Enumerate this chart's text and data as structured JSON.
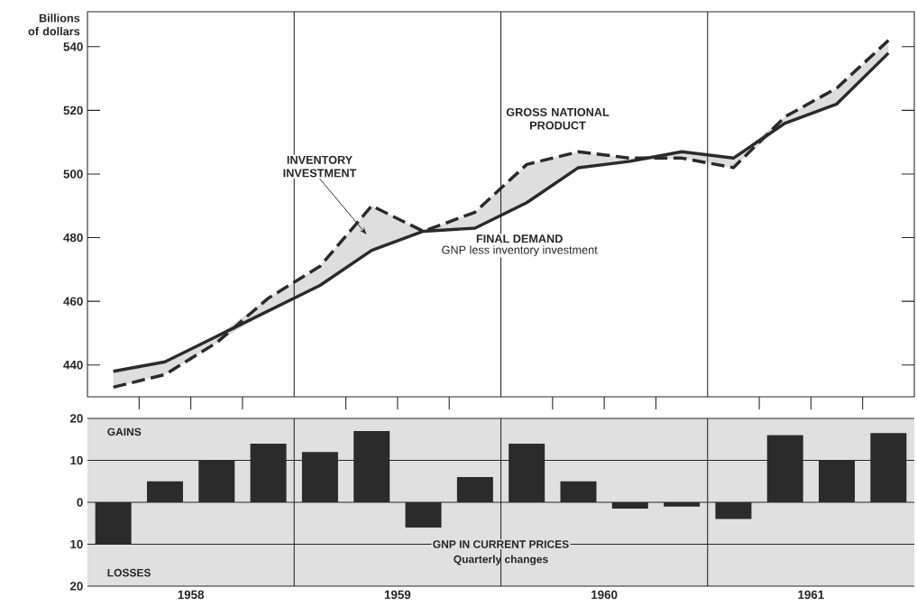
{
  "chart_data": [
    {
      "type": "line",
      "ylabel": "Billions of dollars",
      "x": [
        1958.125,
        1958.375,
        1958.625,
        1958.875,
        1959.125,
        1959.375,
        1959.625,
        1959.875,
        1960.125,
        1960.375,
        1960.625,
        1960.875,
        1961.125,
        1961.375,
        1961.625,
        1961.875
      ],
      "xlim": [
        1958,
        1962
      ],
      "ylim": [
        430,
        551
      ],
      "xticks": [
        {
          "value": 1958.25,
          "label": null
        },
        {
          "value": 1958.5,
          "label": null
        },
        {
          "value": 1958.75,
          "label": null
        },
        {
          "value": 1959.25,
          "label": null
        },
        {
          "value": 1959.5,
          "label": null
        },
        {
          "value": 1959.75,
          "label": null
        },
        {
          "value": 1960.25,
          "label": null
        },
        {
          "value": 1960.5,
          "label": null
        },
        {
          "value": 1960.75,
          "label": null
        },
        {
          "value": 1961.25,
          "label": null
        },
        {
          "value": 1961.5,
          "label": null
        },
        {
          "value": 1961.75,
          "label": null
        }
      ],
      "yticks": [
        440,
        460,
        480,
        500,
        520,
        540
      ],
      "tick_labels": "y",
      "series": [
        {
          "name": "GROSS NATIONAL PRODUCT",
          "color": "#2a2a2a",
          "line_style": "dashed",
          "values": [
            433,
            437,
            447,
            461,
            471,
            490,
            482,
            488,
            503,
            507,
            505,
            505,
            502,
            518,
            527,
            542
          ],
          "lower": [
            433,
            437,
            447,
            457,
            465,
            476,
            482,
            483,
            491,
            502,
            504,
            505,
            502,
            516,
            522,
            538
          ],
          "upper": [
            438,
            441,
            449,
            461,
            471,
            490,
            482,
            488,
            503,
            507,
            505,
            507,
            505,
            518,
            527,
            542
          ]
        },
        {
          "name": "FINAL DEMAND",
          "color": "#2a2a2a",
          "line_style": "solid",
          "values": [
            438,
            441,
            449,
            457,
            465,
            476,
            482,
            483,
            491,
            502,
            504,
            507,
            505,
            516,
            522,
            538
          ]
        }
      ],
      "ref_lines": [
        {
          "axis": "x",
          "value": 1959
        },
        {
          "axis": "x",
          "value": 1960
        },
        {
          "axis": "x",
          "value": 1961
        }
      ],
      "annotations": [
        "INVENTORY INVESTMENT",
        "GNP less inventory investment"
      ]
    },
    {
      "type": "bar",
      "x": [
        1958.125,
        1958.375,
        1958.625,
        1958.875,
        1959.125,
        1959.375,
        1959.625,
        1959.875,
        1960.125,
        1960.375,
        1960.625,
        1960.875,
        1961.125,
        1961.375,
        1961.625,
        1961.875
      ],
      "values": [
        -10,
        5,
        10,
        14,
        12,
        17,
        -6,
        6,
        14,
        5,
        -1.5,
        -1,
        -4,
        16,
        10,
        16.5
      ],
      "color": "#2b2b2b",
      "xlim": [
        1958,
        1962
      ],
      "ylim": [
        -20,
        20
      ],
      "xticks": [
        {
          "value": 1958.5,
          "label": "1958"
        },
        {
          "value": 1959.5,
          "label": "1959"
        },
        {
          "value": 1960.5,
          "label": "1960"
        },
        {
          "value": 1961.5,
          "label": "1961"
        }
      ],
      "yticks": [
        20,
        10,
        0,
        {
          "value": -10,
          "label": "10"
        },
        {
          "value": -20,
          "label": "20"
        }
      ],
      "grid": "y",
      "ref_lines": [
        {
          "axis": "x",
          "value": 1959
        },
        {
          "axis": "x",
          "value": 1960
        },
        {
          "axis": "x",
          "value": 1961
        }
      ],
      "annotations": [
        "GAINS",
        "LOSSES",
        "GNP IN CURRENT PRICES",
        "Quarterly changes"
      ]
    }
  ]
}
